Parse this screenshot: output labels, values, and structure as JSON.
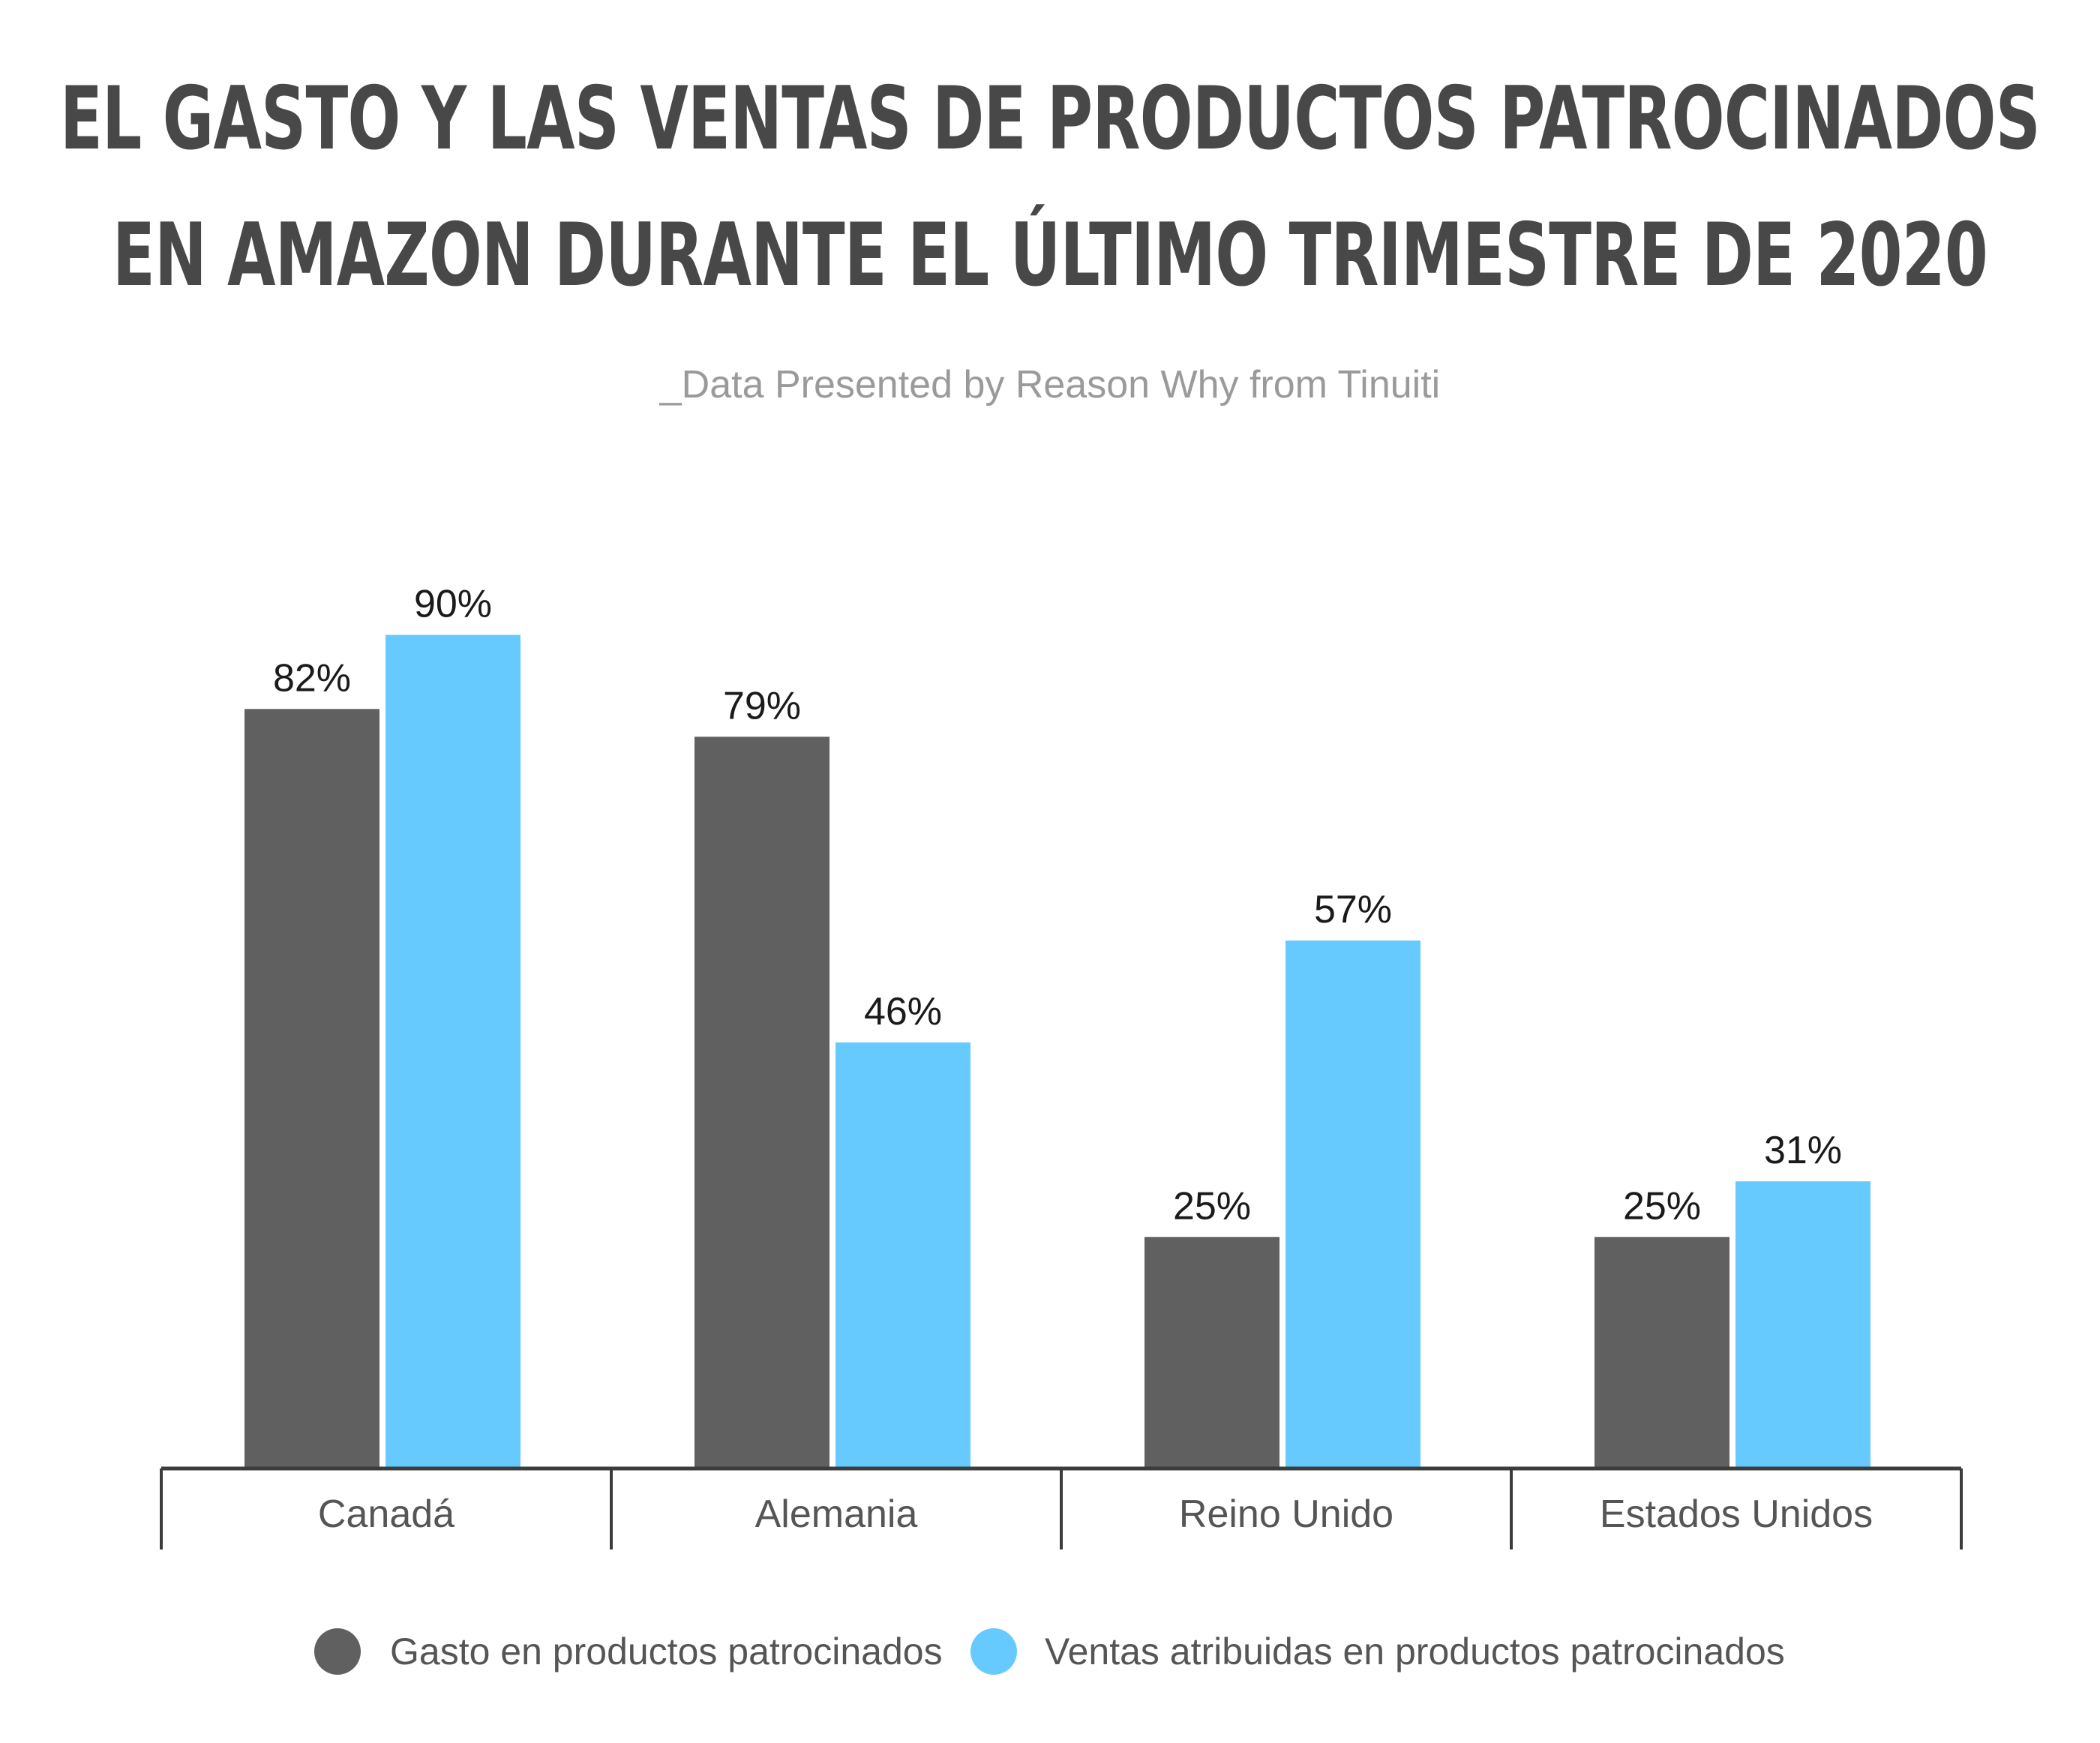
{
  "chart_data": {
    "type": "bar",
    "title_lines": [
      "EL GASTO Y LAS VENTAS DE PRODUCTOS PATROCINADOS",
      "EN AMAZON DURANTE EL ÚLTIMO TRIMESTRE DE 2020"
    ],
    "subtitle": "_Data Presented by Reason Why from Tinuiti",
    "categories": [
      "Canadá",
      "Alemania",
      "Reino Unido",
      "Estados Unidos"
    ],
    "series": [
      {
        "name": "Gasto en productos patrocinados",
        "values": [
          82,
          79,
          25,
          25
        ],
        "labels": [
          "82%",
          "79%",
          "25%",
          "25%"
        ],
        "color": "#606060"
      },
      {
        "name": "Ventas atribuidas en productos patrocinados",
        "values": [
          90,
          46,
          57,
          31
        ],
        "labels": [
          "90%",
          "46%",
          "57%",
          "31%"
        ],
        "color": "#66caff"
      }
    ],
    "ylim": [
      0,
      100
    ],
    "grid": false,
    "legend_position": "bottom-center",
    "axis_color": "#3c3c3c"
  }
}
